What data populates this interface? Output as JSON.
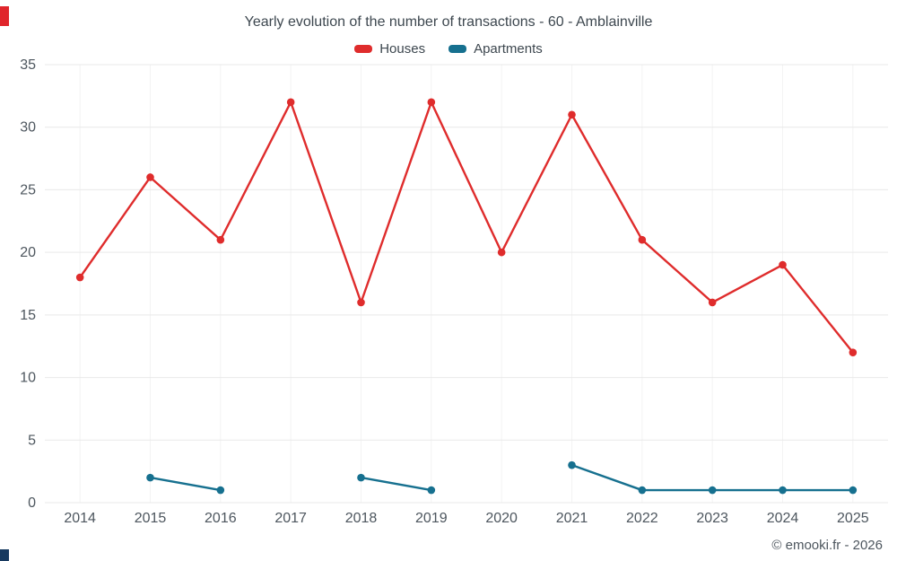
{
  "chart_data": {
    "type": "line",
    "title": "Yearly evolution of the number of transactions - 60 - Amblainville",
    "categories": [
      "2014",
      "2015",
      "2016",
      "2017",
      "2018",
      "2019",
      "2020",
      "2021",
      "2022",
      "2023",
      "2024",
      "2025"
    ],
    "series": [
      {
        "name": "Houses",
        "color": "#df2c2c",
        "values": [
          18,
          26,
          21,
          32,
          16,
          32,
          20,
          31,
          21,
          16,
          19,
          12
        ]
      },
      {
        "name": "Apartments",
        "color": "#16708f",
        "values": [
          null,
          2,
          1,
          null,
          2,
          1,
          null,
          3,
          1,
          1,
          1,
          1
        ]
      }
    ],
    "ylim": [
      0,
      35
    ],
    "yticks": [
      0,
      5,
      10,
      15,
      20,
      25,
      30,
      35
    ],
    "grid": "horizontal gridlines with faint vertical gridlines",
    "legend_position": "top"
  },
  "footer": {
    "credit": "© emooki.fr - 2026"
  },
  "accents": {
    "top_left": "#e0252b",
    "bottom_left": "#17395f"
  }
}
